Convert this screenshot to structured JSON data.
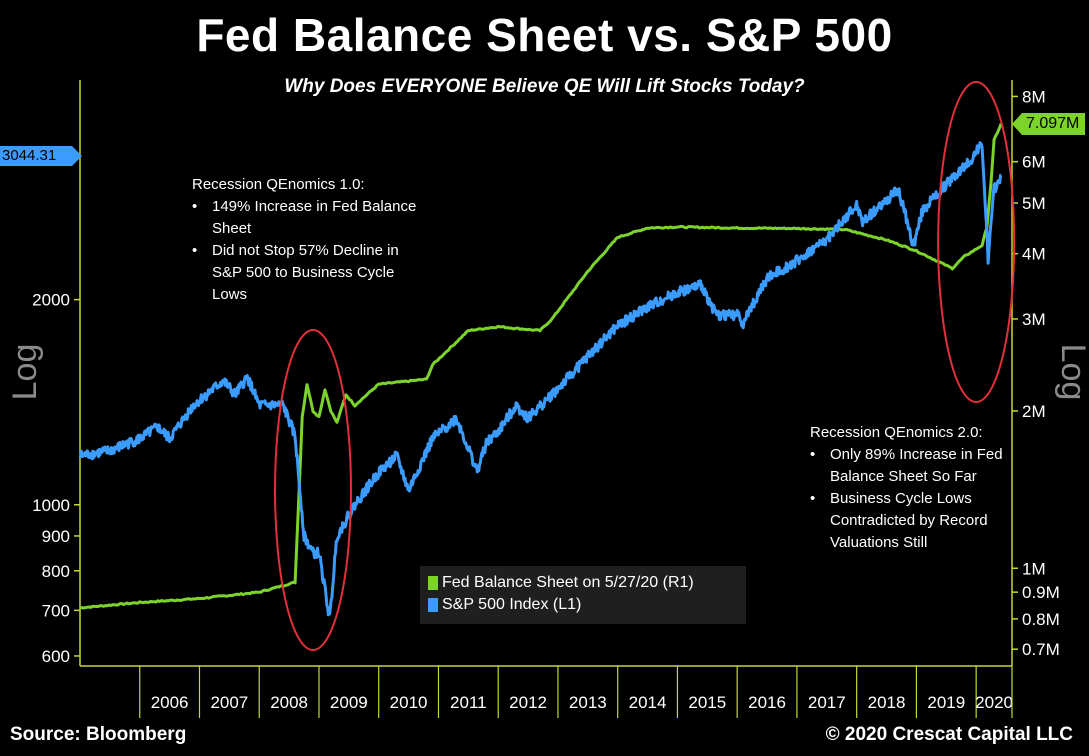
{
  "title": "Fed Balance Sheet vs. S&P 500",
  "subtitle": "Why Does EVERYONE Believe QE Will Lift Stocks Today?",
  "footer": {
    "source": "Source: Bloomberg",
    "copyright": "© 2020 Crescat Capital LLC"
  },
  "annotations": {
    "qe1": {
      "heading": "Recession QEnomics 1.0:",
      "bullets": [
        "149% Increase in Fed Balance Sheet",
        "Did not Stop 57% Decline in S&P 500 to Business Cycle Lows"
      ]
    },
    "qe2": {
      "heading": "Recession QEnomics 2.0:",
      "bullets": [
        "Only 89% Increase in Fed Balance Sheet So Far",
        "Business Cycle Lows Contradicted by Record Valuations Still"
      ]
    }
  },
  "legend": {
    "fed": "Fed Balance Sheet on 5/27/20 (R1)",
    "spx": "S&P 500 Index (L1)"
  },
  "last_values": {
    "spx": "3044.31",
    "fed": "7.097M"
  },
  "colors": {
    "fed": "#7cd32b",
    "spx": "#3b9cff",
    "axis": "#c8d832",
    "circle": "#e0303a",
    "background": "#000000"
  },
  "chart_data": {
    "type": "line",
    "xlabel": "",
    "left_axis": {
      "label": "Log",
      "scale": "log",
      "range": [
        580,
        4200
      ],
      "ticks": [
        600,
        700,
        800,
        900,
        1000,
        2000
      ],
      "tick_labels": [
        "600",
        "700",
        "800",
        "900",
        "1000",
        "2000"
      ]
    },
    "right_axis": {
      "label": "Log",
      "scale": "log",
      "range": [
        650000,
        8600000
      ],
      "ticks": [
        700000,
        800000,
        900000,
        1000000,
        2000000,
        3000000,
        4000000,
        5000000,
        6000000,
        8000000
      ],
      "tick_labels": [
        "0.7M",
        "0.8M",
        "0.9M",
        "1M",
        "2M",
        "3M",
        "4M",
        "5M",
        "6M",
        "8M"
      ]
    },
    "x_range": [
      2005.0,
      2020.6
    ],
    "x_tick_labels": [
      "2006",
      "2007",
      "2008",
      "2009",
      "2010",
      "2011",
      "2012",
      "2013",
      "2014",
      "2015",
      "2016",
      "2017",
      "2018",
      "2019",
      "2020"
    ],
    "series": [
      {
        "name": "Fed Balance Sheet on 5/27/20 (R1)",
        "axis": "right",
        "x": [
          2005.0,
          2006.0,
          2007.0,
          2008.0,
          2008.6,
          2008.72,
          2008.8,
          2008.9,
          2009.0,
          2009.1,
          2009.2,
          2009.3,
          2009.45,
          2009.6,
          2010.0,
          2010.8,
          2010.9,
          2011.5,
          2012.0,
          2012.7,
          2012.9,
          2013.5,
          2014.0,
          2014.5,
          2015.0,
          2016.0,
          2017.0,
          2017.8,
          2018.5,
          2019.0,
          2019.6,
          2019.8,
          2020.1,
          2020.18,
          2020.25,
          2020.3,
          2020.42
        ],
        "y": [
          840000,
          860000,
          875000,
          900000,
          940000,
          1950000,
          2250000,
          2000000,
          1950000,
          2200000,
          2000000,
          1900000,
          2150000,
          2050000,
          2250000,
          2300000,
          2450000,
          2850000,
          2900000,
          2850000,
          3000000,
          3700000,
          4300000,
          4480000,
          4500000,
          4480000,
          4470000,
          4450000,
          4250000,
          4050000,
          3750000,
          3950000,
          4150000,
          4500000,
          5500000,
          6600000,
          7097000
        ]
      },
      {
        "name": "S&P 500 Index (L1)",
        "axis": "left",
        "x": [
          2005.0,
          2005.5,
          2006.0,
          2006.3,
          2006.5,
          2006.9,
          2007.4,
          2007.6,
          2007.8,
          2008.0,
          2008.4,
          2008.6,
          2008.75,
          2008.9,
          2009.0,
          2009.18,
          2009.3,
          2009.6,
          2010.0,
          2010.3,
          2010.5,
          2010.9,
          2011.3,
          2011.65,
          2011.8,
          2012.0,
          2012.3,
          2012.5,
          2013.0,
          2013.5,
          2014.0,
          2014.5,
          2015.0,
          2015.4,
          2015.65,
          2016.0,
          2016.1,
          2016.5,
          2017.0,
          2017.5,
          2018.0,
          2018.1,
          2018.7,
          2018.95,
          2019.1,
          2019.5,
          2019.9,
          2020.1,
          2020.2,
          2020.3,
          2020.42
        ],
        "y": [
          1180,
          1200,
          1250,
          1300,
          1250,
          1400,
          1520,
          1450,
          1540,
          1400,
          1400,
          1260,
          900,
          850,
          850,
          680,
          900,
          1000,
          1115,
          1180,
          1050,
          1250,
          1340,
          1120,
          1230,
          1280,
          1400,
          1340,
          1480,
          1650,
          1830,
          1950,
          2050,
          2100,
          1900,
          1900,
          1850,
          2150,
          2280,
          2450,
          2750,
          2600,
          2900,
          2400,
          2700,
          2950,
          3200,
          3380,
          2300,
          2900,
          3044.31
        ]
      }
    ]
  }
}
